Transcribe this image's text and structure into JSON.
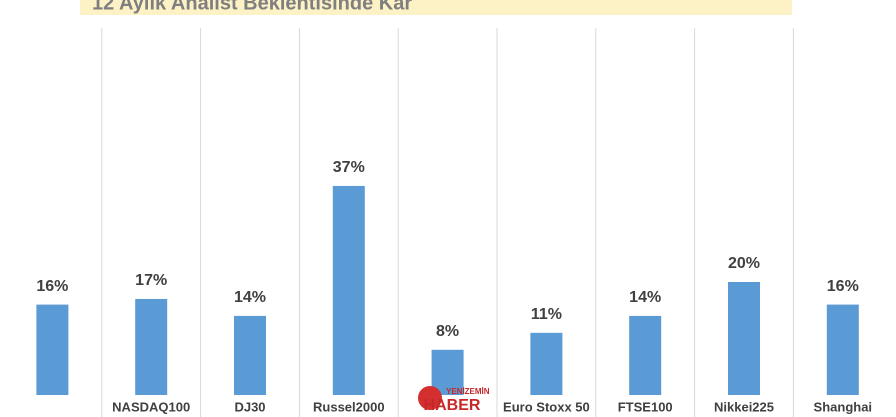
{
  "chart_data": {
    "type": "bar",
    "title": "12 Aylık Analist Beklentisinde Kar",
    "categories": [
      null,
      "NASDAQ100",
      "DJ30",
      "Russel2000",
      null,
      "Euro Stoxx 50",
      "FTSE100",
      "Nikkei225",
      "Shanghai"
    ],
    "values": [
      16,
      17,
      14,
      37,
      8,
      11,
      14,
      20,
      16
    ],
    "value_labels": [
      "16%",
      "17%",
      "14%",
      "37%",
      "8%",
      "11%",
      "14%",
      "20%",
      "16%"
    ],
    "color": "#5b9bd5",
    "watermark": [
      "YENİZEMİN",
      "HABER"
    ]
  }
}
